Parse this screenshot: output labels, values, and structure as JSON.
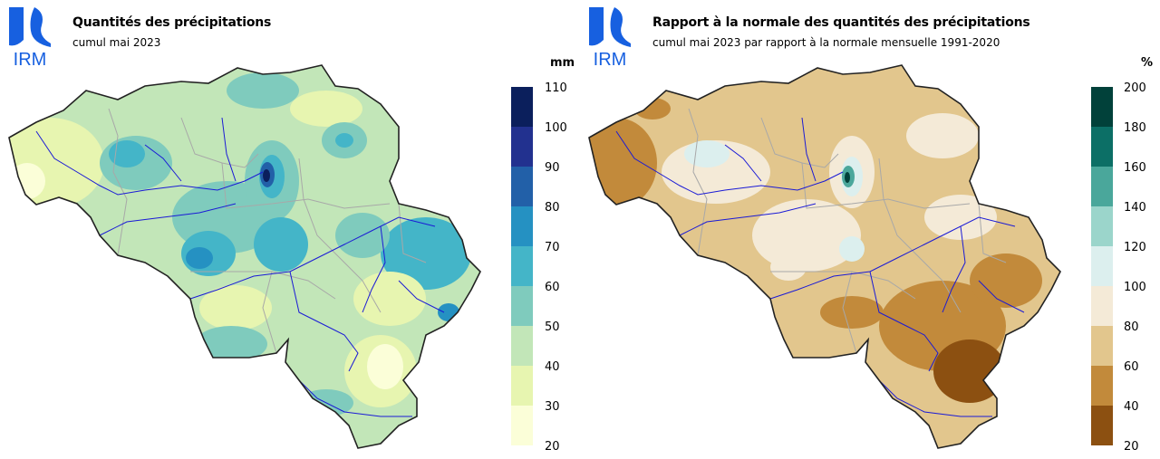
{
  "panels": [
    {
      "title": "Quantités des précipitations",
      "subtitle": "cumul mai 2023",
      "unit": "mm",
      "logo_text": "IRM",
      "legend_ticks": [
        "110",
        "100",
        "90",
        "80",
        "70",
        "60",
        "50",
        "40",
        "30",
        "20"
      ],
      "legend_colors": [
        "#0b1f5c",
        "#22318f",
        "#2260a8",
        "#2591c2",
        "#44b5c8",
        "#7fcbbd",
        "#c2e6b8",
        "#e7f5b0",
        "#fbfed8"
      ]
    },
    {
      "title": "Rapport à la normale des quantités des précipitations",
      "subtitle": "cumul mai 2023 par rapport à la normale mensuelle 1991-2020",
      "unit": "%",
      "logo_text": "IRM",
      "legend_ticks": [
        "200",
        "180",
        "160",
        "140",
        "120",
        "100",
        "80",
        "60",
        "40",
        "20"
      ],
      "legend_colors": [
        "#01413a",
        "#0c6f66",
        "#4aa79b",
        "#9bd5cb",
        "#dcefee",
        "#f4ead7",
        "#e2c68d",
        "#c28a3b",
        "#8c5011"
      ]
    }
  ]
}
